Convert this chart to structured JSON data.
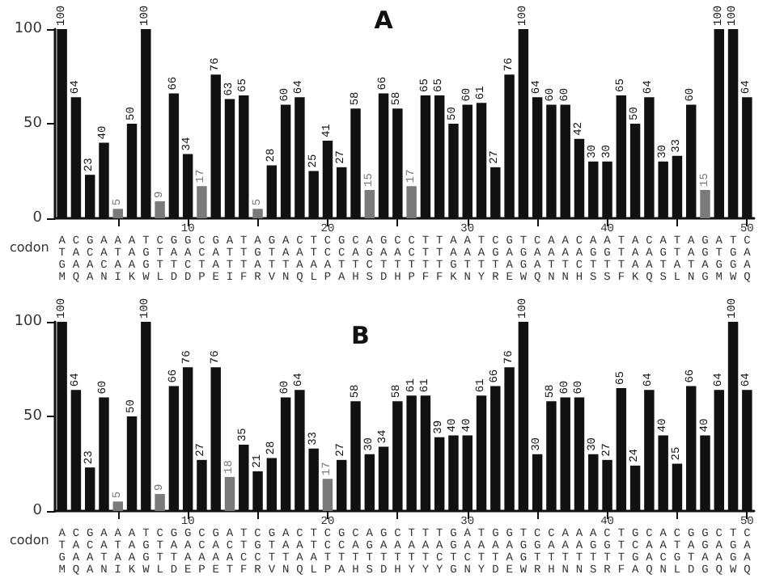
{
  "chart_data": [
    {
      "type": "bar",
      "title": "A",
      "xlabel": "codon",
      "ylim": [
        0,
        100
      ],
      "yticks": [
        0,
        50,
        100
      ],
      "data_labels": true,
      "grid": false,
      "categories": [
        "A\nT\nG\nM",
        "C\nA\nA\nQ",
        "G\nC\nA\nA",
        "A\nA\nC\nN",
        "A\nT\nA\nI",
        "A\nA\nA\nK",
        "T\nG\nG\nW",
        "C\nT\nT\nL",
        "G\nA\nT\nD",
        "10\nG\nA\nC\nD",
        "C\nC\nT\nP",
        "G\nA\nA\nE",
        "A\nT\nT\nI",
        "T\nT\nT\nF",
        "A\nG\nA\nR",
        "G\nT\nT\nV",
        "A\nA\nT\nN",
        "C\nA\nA\nQ",
        "T\nT\nA\nL",
        "20\nC\nC\nA\nP",
        "G\nC\nT\nA",
        "C\nA\nT\nH",
        "A\nG\nC\nS",
        "G\nA\nT\nD",
        "C\nA\nT\nH",
        "C\nC\nT\nP",
        "T\nT\nT\nF",
        "T\nT\nT\nF",
        "A\nA\nG\nK",
        "30\nA\nA\nT\nN",
        "T\nA\nT\nY",
        "C\nG\nT\nR",
        "G\nA\nA\nE",
        "T\nG\nG\nW",
        "C\nA\nA\nQ",
        "A\nA\nT\nN",
        "A\nA\nT\nN",
        "C\nA\nC\nH",
        "A\nG\nT\nS",
        "40\nA\nG\nT\nS",
        "T\nT\nT\nF",
        "A\nA\nA\nK",
        "C\nA\nA\nQ",
        "A\nG\nT\nS",
        "T\nT\nA\nL",
        "A\nA\nT\nN",
        "G\nG\nA\nG",
        "A\nT\nG\nM",
        "T\nG\nG\nW",
        "50\nC\nA\nA\nQ"
      ],
      "values": [
        100,
        64,
        23,
        40,
        5,
        50,
        100,
        9,
        66,
        34,
        17,
        76,
        63,
        65,
        5,
        28,
        60,
        64,
        25,
        41,
        27,
        58,
        15,
        66,
        58,
        17,
        65,
        65,
        50,
        60,
        61,
        27,
        76,
        100,
        64,
        60,
        60,
        42,
        30,
        30,
        65,
        50,
        64,
        30,
        33,
        60,
        15,
        100,
        100,
        64
      ],
      "colors": [
        "#111111",
        "#111111",
        "#111111",
        "#111111",
        "#7a7a7a",
        "#111111",
        "#111111",
        "#7a7a7a",
        "#111111",
        "#111111",
        "#7a7a7a",
        "#111111",
        "#111111",
        "#111111",
        "#7a7a7a",
        "#111111",
        "#111111",
        "#111111",
        "#111111",
        "#111111",
        "#111111",
        "#111111",
        "#7a7a7a",
        "#111111",
        "#111111",
        "#7a7a7a",
        "#111111",
        "#111111",
        "#111111",
        "#111111",
        "#111111",
        "#111111",
        "#111111",
        "#111111",
        "#111111",
        "#111111",
        "#111111",
        "#111111",
        "#111111",
        "#111111",
        "#111111",
        "#111111",
        "#111111",
        "#111111",
        "#111111",
        "#111111",
        "#7a7a7a",
        "#111111",
        "#111111",
        "#111111"
      ]
    },
    {
      "type": "bar",
      "title": "B",
      "xlabel": "codon",
      "ylim": [
        0,
        100
      ],
      "yticks": [
        0,
        50,
        100
      ],
      "data_labels": true,
      "grid": false,
      "categories": [
        "A\nT\nG\nM",
        "C\nA\nA\nQ",
        "G\nC\nA\nA",
        "A\nA\nT\nN",
        "A\nT\nA\nI",
        "A\nA\nA\nK",
        "T\nG\nG\nW",
        "C\nT\nT\nL",
        "G\nA\nT\nD",
        "10\nG\nA\nA\nE",
        "C\nC\nA\nP",
        "G\nA\nA\nE",
        "A\nC\nA\nT",
        "T\nT\nC\nF",
        "C\nG\nC\nR",
        "G\nT\nT\nV",
        "A\nA\nT\nN",
        "C\nA\nA\nQ",
        "T\nT\nA\nL",
        "20\nC\nC\nT\nP",
        "G\nC\nT\nA",
        "C\nA\nT\nH",
        "A\nG\nT\nS",
        "G\nA\nT\nD",
        "C\nA\nT\nH",
        "T\nA\nT\nY",
        "T\nA\nT\nY",
        "T\nA\nC\nY",
        "G\nG\nT\nG",
        "30\nA\nA\nC\nN",
        "T\nA\nT\nY",
        "G\nA\nT\nD",
        "G\nA\nA\nE",
        "T\nG\nG\nW",
        "C\nG\nT\nR",
        "C\nA\nT\nH",
        "A\nA\nT\nN",
        "A\nA\nT\nN",
        "A\nG\nT\nS",
        "40\nC\nG\nT\nR",
        "T\nT\nT\nF",
        "G\nC\nG\nA",
        "C\nA\nA\nQ",
        "A\nA\nC\nN",
        "C\nT\nG\nL",
        "G\nA\nT\nD",
        "G\nG\nA\nG",
        "C\nA\nA\nQ",
        "T\nG\nG\nW",
        "50\nC\nA\nA\nQ"
      ],
      "values": [
        100,
        64,
        23,
        60,
        5,
        50,
        100,
        9,
        66,
        76,
        27,
        76,
        18,
        35,
        21,
        28,
        60,
        64,
        33,
        17,
        27,
        58,
        30,
        34,
        58,
        61,
        61,
        39,
        40,
        40,
        61,
        66,
        76,
        100,
        30,
        58,
        60,
        60,
        30,
        27,
        65,
        24,
        64,
        40,
        25,
        66,
        40,
        64,
        100,
        64
      ],
      "colors": [
        "#111111",
        "#111111",
        "#111111",
        "#111111",
        "#7a7a7a",
        "#111111",
        "#111111",
        "#7a7a7a",
        "#111111",
        "#111111",
        "#111111",
        "#111111",
        "#7a7a7a",
        "#111111",
        "#111111",
        "#111111",
        "#111111",
        "#111111",
        "#111111",
        "#7a7a7a",
        "#111111",
        "#111111",
        "#111111",
        "#111111",
        "#111111",
        "#111111",
        "#111111",
        "#111111",
        "#111111",
        "#111111",
        "#111111",
        "#111111",
        "#111111",
        "#111111",
        "#111111",
        "#111111",
        "#111111",
        "#111111",
        "#111111",
        "#111111",
        "#111111",
        "#111111",
        "#111111",
        "#111111",
        "#111111",
        "#111111",
        "#111111",
        "#111111",
        "#111111",
        "#111111"
      ]
    }
  ]
}
